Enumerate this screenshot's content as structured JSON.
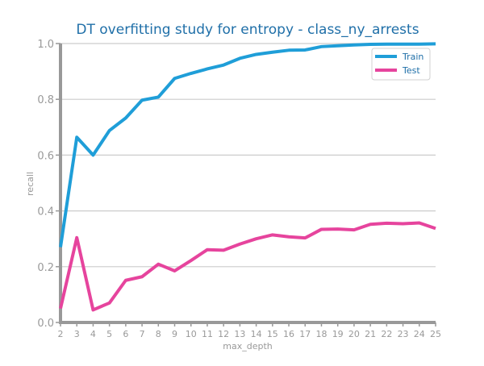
{
  "chart_data": {
    "type": "line",
    "title": "DT overfitting study for entropy - class_ny_arrests",
    "xlabel": "max_depth",
    "ylabel": "recall",
    "x": [
      2,
      3,
      4,
      5,
      6,
      7,
      8,
      9,
      10,
      11,
      12,
      13,
      14,
      15,
      16,
      17,
      18,
      19,
      20,
      21,
      22,
      23,
      24,
      25
    ],
    "xlim": [
      2,
      25
    ],
    "ylim": [
      0.0,
      1.0
    ],
    "yticks": [
      0.0,
      0.2,
      0.4,
      0.6,
      0.8,
      1.0
    ],
    "ytick_labels": [
      "0.0",
      "0.2",
      "0.4",
      "0.6",
      "0.8",
      "1.0"
    ],
    "grid": "horizontal",
    "legend_position": "top-right",
    "series": [
      {
        "name": "Train",
        "color": "#1f9ed8",
        "values": [
          0.27,
          0.664,
          0.6,
          0.688,
          0.733,
          0.797,
          0.808,
          0.875,
          0.893,
          0.909,
          0.923,
          0.947,
          0.961,
          0.969,
          0.976,
          0.977,
          0.989,
          0.992,
          0.995,
          0.997,
          0.998,
          0.998,
          0.998,
          0.999
        ]
      },
      {
        "name": "Test",
        "color": "#e6449d",
        "values": [
          0.05,
          0.304,
          0.045,
          0.07,
          0.151,
          0.164,
          0.209,
          0.185,
          0.222,
          0.261,
          0.259,
          0.281,
          0.3,
          0.314,
          0.307,
          0.303,
          0.334,
          0.335,
          0.332,
          0.352,
          0.356,
          0.354,
          0.357,
          0.337
        ]
      }
    ]
  }
}
